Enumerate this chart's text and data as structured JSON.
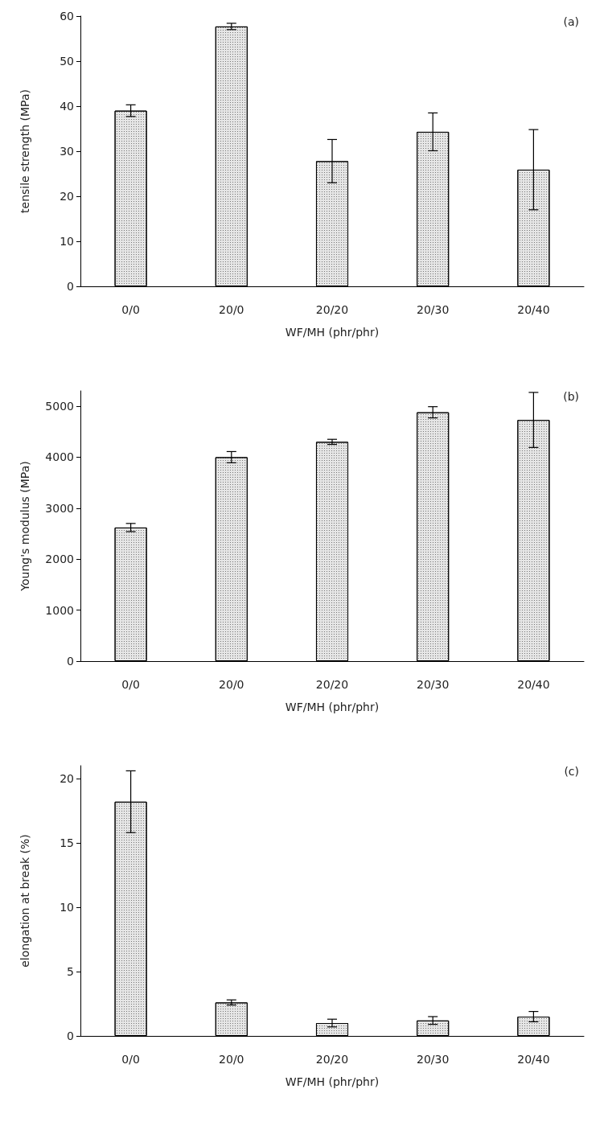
{
  "chart_data": [
    {
      "type": "bar",
      "xlabel": "WF/MH (phr/phr)",
      "ylabel": "tensile strength (MPa)",
      "annotations": [
        "(a)"
      ],
      "categories": [
        "0/0",
        "20/0",
        "20/20",
        "20/30",
        "20/40"
      ],
      "values": [
        39.0,
        57.7,
        27.8,
        34.3,
        25.9
      ],
      "errors": [
        1.3,
        0.7,
        4.8,
        4.2,
        8.9
      ],
      "color": "#e6e6e6",
      "ylim": [
        0,
        60
      ],
      "yticks": [
        0,
        10,
        20,
        30,
        40,
        50,
        60
      ],
      "grid": false
    },
    {
      "type": "bar",
      "xlabel": "WF/MH (phr/phr)",
      "ylabel": "Young's modulus (MPa)",
      "annotations": [
        "(b)"
      ],
      "categories": [
        "0/0",
        "20/0",
        "20/20",
        "20/30",
        "20/40"
      ],
      "values": [
        2620,
        4000,
        4300,
        4880,
        4730
      ],
      "errors": [
        80,
        110,
        50,
        110,
        540
      ],
      "color": "#e6e6e6",
      "ylim": [
        0,
        5300
      ],
      "yticks": [
        0,
        1000,
        2000,
        3000,
        4000,
        5000
      ],
      "grid": false
    },
    {
      "type": "bar",
      "xlabel": "WF/MH (phr/phr)",
      "ylabel": "elongation at break (%)",
      "annotations": [
        "(c)"
      ],
      "categories": [
        "0/0",
        "20/0",
        "20/20",
        "20/30",
        "20/40"
      ],
      "values": [
        18.2,
        2.6,
        1.0,
        1.2,
        1.5
      ],
      "errors": [
        2.4,
        0.2,
        0.3,
        0.3,
        0.4
      ],
      "color": "#e6e6e6",
      "ylim": [
        0,
        21
      ],
      "yticks": [
        0,
        5,
        10,
        15,
        20
      ],
      "grid": false
    }
  ]
}
